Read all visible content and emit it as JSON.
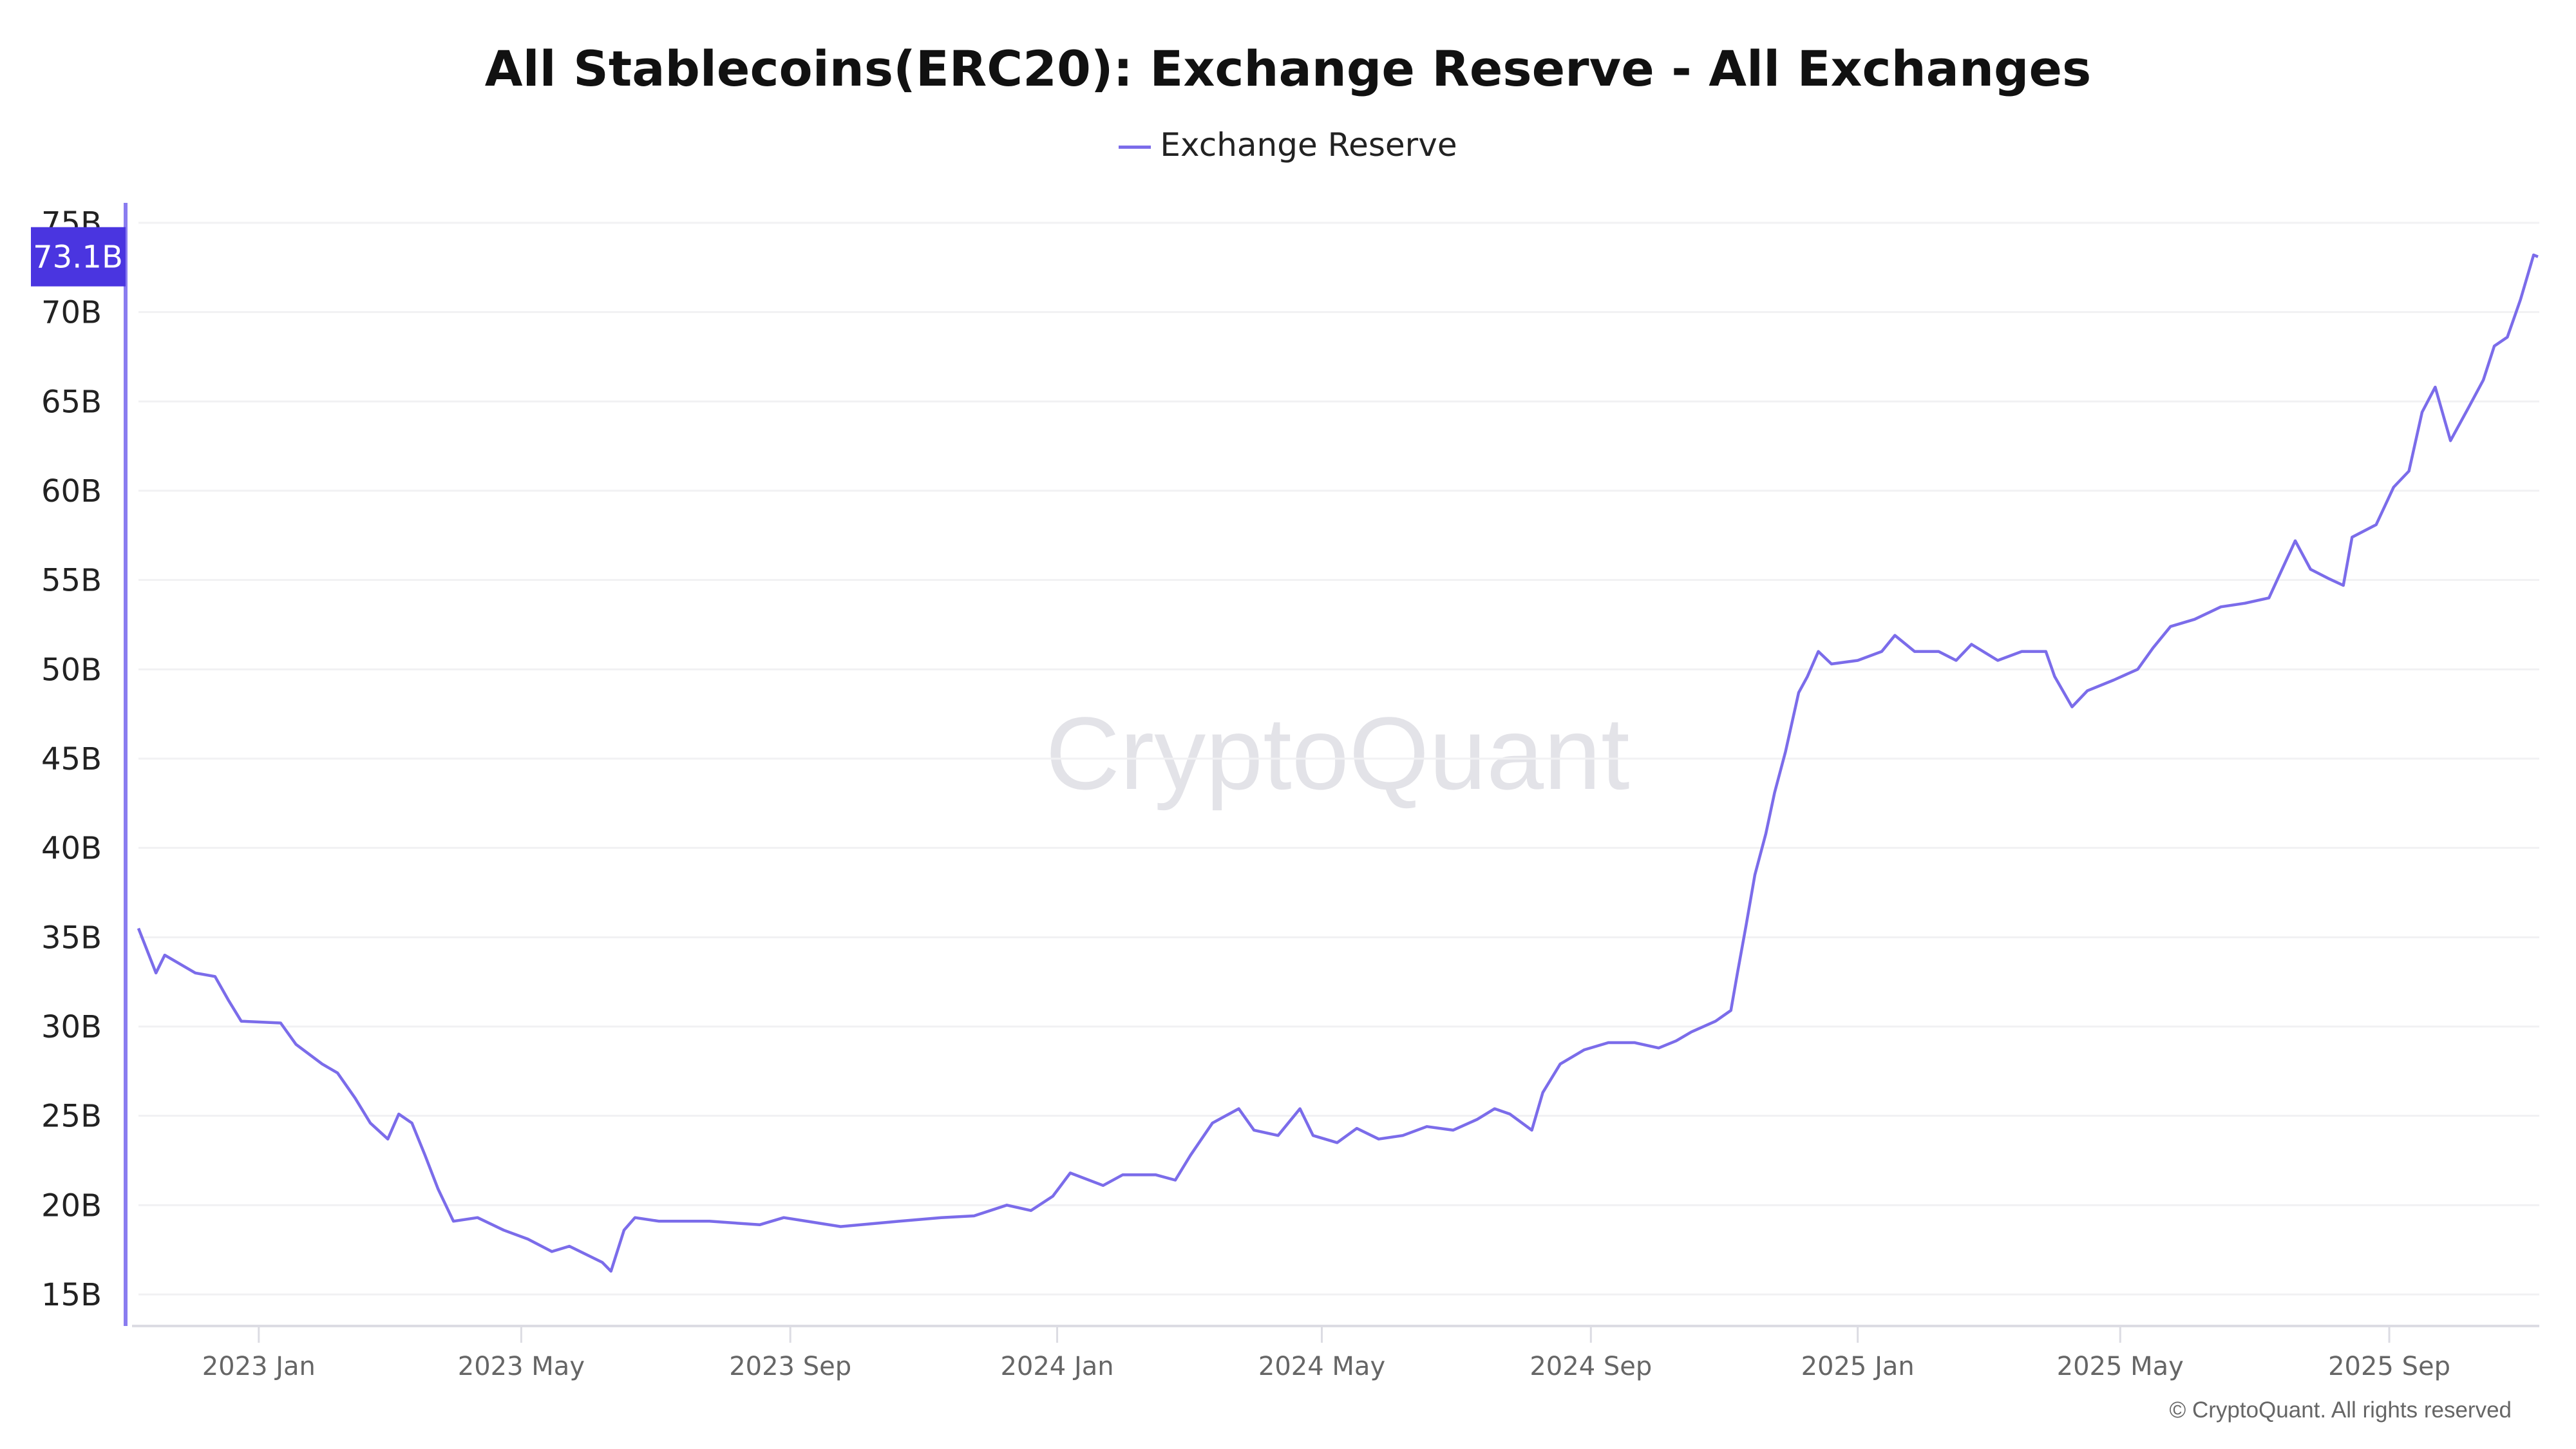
{
  "chart_data": {
    "type": "line",
    "title": "All Stablecoins(ERC20): Exchange Reserve - All Exchanges",
    "xlabel": "",
    "ylabel": "",
    "legend": {
      "position": "top-center",
      "entries": [
        "Exchange Reserve"
      ]
    },
    "grid": true,
    "ylim": [
      15,
      75
    ],
    "xlim": [
      "2022-11-07",
      "2025-11-08"
    ],
    "y_ticks": [
      "15B",
      "20B",
      "25B",
      "30B",
      "35B",
      "40B",
      "45B",
      "50B",
      "55B",
      "60B",
      "65B",
      "70B",
      "75B"
    ],
    "x_ticks": [
      {
        "label": "2023 Jan",
        "date": "2023-01-01"
      },
      {
        "label": "2023 May",
        "date": "2023-05-01"
      },
      {
        "label": "2023 Sep",
        "date": "2023-09-01"
      },
      {
        "label": "2024 Jan",
        "date": "2024-01-01"
      },
      {
        "label": "2024 May",
        "date": "2024-05-01"
      },
      {
        "label": "2024 Sep",
        "date": "2024-09-01"
      },
      {
        "label": "2025 Jan",
        "date": "2025-01-01"
      },
      {
        "label": "2025 May",
        "date": "2025-05-01"
      },
      {
        "label": "2025 Sep",
        "date": "2025-09-01"
      }
    ],
    "last_value_label": "73.1B",
    "colors": {
      "line": "#7b6cea",
      "badge": "#4a35e0",
      "axis": "#8a7cf0"
    },
    "series": [
      {
        "name": "Exchange Reserve",
        "unit": "B",
        "points": [
          [
            "2022-11-07",
            35.5
          ],
          [
            "2022-11-15",
            33.0
          ],
          [
            "2022-11-19",
            34.0
          ],
          [
            "2022-12-03",
            33.0
          ],
          [
            "2022-12-12",
            32.8
          ],
          [
            "2022-12-18",
            31.5
          ],
          [
            "2022-12-24",
            30.3
          ],
          [
            "2023-01-11",
            30.2
          ],
          [
            "2023-01-18",
            29.0
          ],
          [
            "2023-01-30",
            27.9
          ],
          [
            "2023-02-06",
            27.4
          ],
          [
            "2023-02-14",
            26.0
          ],
          [
            "2023-02-21",
            24.6
          ],
          [
            "2023-03-01",
            23.7
          ],
          [
            "2023-03-06",
            25.1
          ],
          [
            "2023-03-12",
            24.6
          ],
          [
            "2023-03-18",
            22.8
          ],
          [
            "2023-03-24",
            20.9
          ],
          [
            "2023-03-31",
            19.1
          ],
          [
            "2023-04-11",
            19.3
          ],
          [
            "2023-04-23",
            18.6
          ],
          [
            "2023-05-04",
            18.1
          ],
          [
            "2023-05-15",
            17.4
          ],
          [
            "2023-05-23",
            17.7
          ],
          [
            "2023-06-07",
            16.8
          ],
          [
            "2023-06-11",
            16.3
          ],
          [
            "2023-06-17",
            18.6
          ],
          [
            "2023-06-22",
            19.3
          ],
          [
            "2023-07-03",
            19.1
          ],
          [
            "2023-07-26",
            19.1
          ],
          [
            "2023-08-18",
            18.9
          ],
          [
            "2023-08-29",
            19.3
          ],
          [
            "2023-09-24",
            18.8
          ],
          [
            "2023-10-21",
            19.1
          ],
          [
            "2023-11-09",
            19.3
          ],
          [
            "2023-11-24",
            19.4
          ],
          [
            "2023-12-09",
            20.0
          ],
          [
            "2023-12-20",
            19.7
          ],
          [
            "2023-12-30",
            20.5
          ],
          [
            "2024-01-07",
            21.8
          ],
          [
            "2024-01-22",
            21.1
          ],
          [
            "2024-01-31",
            21.7
          ],
          [
            "2024-02-15",
            21.7
          ],
          [
            "2024-02-24",
            21.4
          ],
          [
            "2024-03-02",
            22.8
          ],
          [
            "2024-03-12",
            24.6
          ],
          [
            "2024-03-24",
            25.4
          ],
          [
            "2024-03-31",
            24.2
          ],
          [
            "2024-04-11",
            23.9
          ],
          [
            "2024-04-21",
            25.4
          ],
          [
            "2024-04-27",
            23.9
          ],
          [
            "2024-05-08",
            23.5
          ],
          [
            "2024-05-17",
            24.3
          ],
          [
            "2024-05-27",
            23.7
          ],
          [
            "2024-06-07",
            23.9
          ],
          [
            "2024-06-18",
            24.4
          ],
          [
            "2024-06-30",
            24.2
          ],
          [
            "2024-07-11",
            24.8
          ],
          [
            "2024-07-19",
            25.4
          ],
          [
            "2024-07-26",
            25.1
          ],
          [
            "2024-08-05",
            24.2
          ],
          [
            "2024-08-10",
            26.3
          ],
          [
            "2024-08-18",
            27.9
          ],
          [
            "2024-08-29",
            28.7
          ],
          [
            "2024-09-09",
            29.1
          ],
          [
            "2024-09-21",
            29.1
          ],
          [
            "2024-10-02",
            28.8
          ],
          [
            "2024-10-10",
            29.2
          ],
          [
            "2024-10-17",
            29.7
          ],
          [
            "2024-10-28",
            30.3
          ],
          [
            "2024-11-04",
            30.9
          ],
          [
            "2024-11-07",
            33.0
          ],
          [
            "2024-11-11",
            35.7
          ],
          [
            "2024-11-15",
            38.5
          ],
          [
            "2024-11-20",
            40.8
          ],
          [
            "2024-11-24",
            43.1
          ],
          [
            "2024-11-29",
            45.4
          ],
          [
            "2024-12-05",
            48.7
          ],
          [
            "2024-12-09",
            49.6
          ],
          [
            "2024-12-14",
            51.0
          ],
          [
            "2024-12-20",
            50.3
          ],
          [
            "2025-01-01",
            50.5
          ],
          [
            "2025-01-12",
            51.0
          ],
          [
            "2025-01-18",
            51.9
          ],
          [
            "2025-01-27",
            51.0
          ],
          [
            "2025-02-07",
            51.0
          ],
          [
            "2025-02-15",
            50.5
          ],
          [
            "2025-02-22",
            51.4
          ],
          [
            "2025-03-06",
            50.5
          ],
          [
            "2025-03-17",
            51.0
          ],
          [
            "2025-03-28",
            51.0
          ],
          [
            "2025-04-01",
            49.6
          ],
          [
            "2025-04-09",
            47.9
          ],
          [
            "2025-04-16",
            48.8
          ],
          [
            "2025-04-28",
            49.4
          ],
          [
            "2025-05-09",
            50.0
          ],
          [
            "2025-05-16",
            51.2
          ],
          [
            "2025-05-24",
            52.4
          ],
          [
            "2025-06-04",
            52.8
          ],
          [
            "2025-06-16",
            53.5
          ],
          [
            "2025-06-27",
            53.7
          ],
          [
            "2025-07-08",
            54.0
          ],
          [
            "2025-07-14",
            55.6
          ],
          [
            "2025-07-20",
            57.2
          ],
          [
            "2025-07-27",
            55.6
          ],
          [
            "2025-08-04",
            55.1
          ],
          [
            "2025-08-11",
            54.7
          ],
          [
            "2025-08-15",
            57.4
          ],
          [
            "2025-08-26",
            58.1
          ],
          [
            "2025-09-03",
            60.2
          ],
          [
            "2025-09-10",
            61.1
          ],
          [
            "2025-09-16",
            64.4
          ],
          [
            "2025-09-22",
            65.8
          ],
          [
            "2025-09-29",
            62.8
          ],
          [
            "2025-10-07",
            64.6
          ],
          [
            "2025-10-14",
            66.2
          ],
          [
            "2025-10-19",
            68.1
          ],
          [
            "2025-10-25",
            68.6
          ],
          [
            "2025-10-31",
            70.7
          ],
          [
            "2025-11-06",
            73.2
          ],
          [
            "2025-11-08",
            73.1
          ]
        ]
      }
    ]
  },
  "watermark": "CryptoQuant",
  "copyright": "© CryptoQuant. All rights reserved"
}
